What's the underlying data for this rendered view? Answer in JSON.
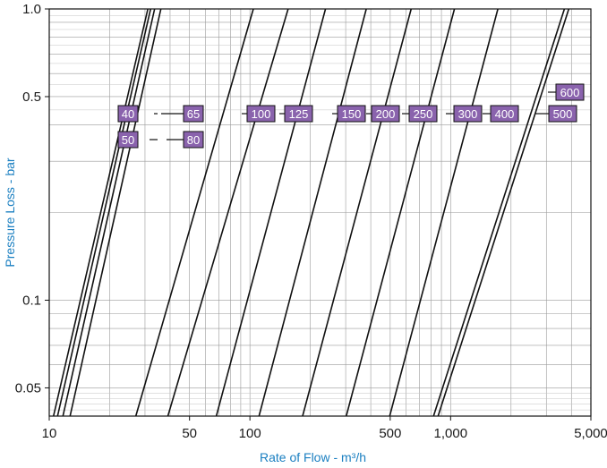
{
  "chart_data": {
    "type": "line",
    "xlabel": "Rate of Flow - m³/h",
    "ylabel": "Pressure Loss - bar",
    "x_scale": "log",
    "y_scale": "log",
    "xlim": [
      10,
      5000
    ],
    "ylim": [
      0.04,
      1.0
    ],
    "grid": true,
    "x_tick_labels": [
      {
        "value": 10,
        "label": "10"
      },
      {
        "value": 50,
        "label": "50"
      },
      {
        "value": 100,
        "label": "100"
      },
      {
        "value": 500,
        "label": "500"
      },
      {
        "value": 1000,
        "label": "1,000"
      },
      {
        "value": 5000,
        "label": "5,000"
      }
    ],
    "y_tick_labels": [
      {
        "value": 1.0,
        "label": "1.0"
      },
      {
        "value": 0.5,
        "label": "0.5"
      },
      {
        "value": 0.1,
        "label": "0.1"
      },
      {
        "value": 0.05,
        "label": "0.05"
      }
    ],
    "series": [
      {
        "name": "40",
        "points": [
          [
            10.5,
            0.04
          ],
          [
            31,
            1.0
          ]
        ]
      },
      {
        "name": "50",
        "points": [
          [
            11.0,
            0.04
          ],
          [
            32,
            1.0
          ]
        ]
      },
      {
        "name": "65",
        "points": [
          [
            11.7,
            0.04
          ],
          [
            33.5,
            1.0
          ]
        ]
      },
      {
        "name": "80",
        "points": [
          [
            12.7,
            0.04
          ],
          [
            36,
            1.0
          ]
        ]
      },
      {
        "name": "100",
        "points": [
          [
            27,
            0.04
          ],
          [
            104,
            1.0
          ]
        ]
      },
      {
        "name": "125",
        "points": [
          [
            39,
            0.04
          ],
          [
            155,
            1.0
          ]
        ]
      },
      {
        "name": "150",
        "points": [
          [
            68,
            0.04
          ],
          [
            238,
            1.0
          ]
        ]
      },
      {
        "name": "200",
        "points": [
          [
            111,
            0.04
          ],
          [
            380,
            1.0
          ]
        ]
      },
      {
        "name": "250",
        "points": [
          [
            183,
            0.04
          ],
          [
            636,
            1.0
          ]
        ]
      },
      {
        "name": "300",
        "points": [
          [
            302,
            0.04
          ],
          [
            1045,
            1.0
          ]
        ]
      },
      {
        "name": "400",
        "points": [
          [
            497,
            0.04
          ],
          [
            1720,
            1.0
          ]
        ]
      },
      {
        "name": "500",
        "points": [
          [
            822,
            0.04
          ],
          [
            3690,
            1.0
          ]
        ]
      },
      {
        "name": "600",
        "points": [
          [
            866,
            0.04
          ],
          [
            3880,
            1.0
          ]
        ]
      }
    ],
    "line_labels": [
      "40",
      "50",
      "65",
      "80",
      "100",
      "125",
      "150",
      "200",
      "250",
      "300",
      "400",
      "500",
      "600"
    ],
    "colors": {
      "line": "#111111",
      "grid": "#9a9a9a",
      "axis_title": "#1a7fc1",
      "label_fill": "#8a63ad",
      "label_text": "#ffffff"
    }
  }
}
